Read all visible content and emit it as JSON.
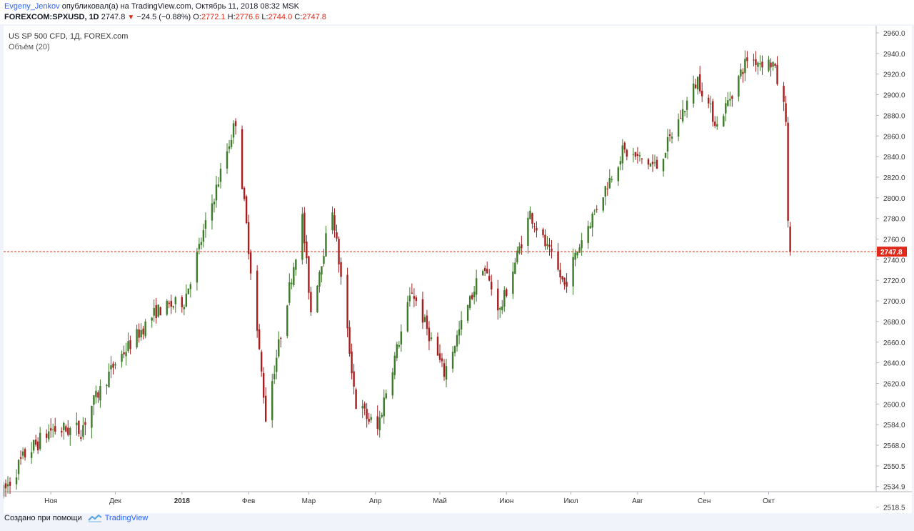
{
  "header": {
    "author": "Evgeny_Jenkov",
    "published_text": "опубликовал(а) на TradingView.com, Октябрь 11, 2018 08:32 MSK",
    "symbol": "FOREXCOM:SPXUSD, 1D",
    "last": "2747.8",
    "change": "−24.5 (−0.88%)",
    "o_label": "O:",
    "o": "2772.1",
    "h_label": "H:",
    "h": "2776.6",
    "l_label": "L:",
    "l": "2744.0",
    "c_label": "C:",
    "c": "2747.8"
  },
  "legend": {
    "title": "US SP 500 CFD, 1Д, FOREX.com",
    "volume": "Объём (20)"
  },
  "footer": {
    "created": "Создано при помощи",
    "brand": "TradingView"
  },
  "colors": {
    "up": "#3d7a2a",
    "down": "#a61e1e",
    "last_line": "#e0291a"
  },
  "chart_data": {
    "type": "candlestick",
    "price_label": "2747.8",
    "y_ticks": [
      2518.5,
      2534.9,
      2550.5,
      2568.0,
      2584.0,
      2600.0,
      2620.0,
      2640.0,
      2660.0,
      2680.0,
      2700.0,
      2720.0,
      2740.0,
      2760.0,
      2780.0,
      2800.0,
      2820.0,
      2840.0,
      2860.0,
      2880.0,
      2900.0,
      2920.0,
      2940.0,
      2960.0
    ],
    "y_tick_labels": [
      "2518.5",
      "2534.9",
      "2550.5",
      "2568.0",
      "2584.0",
      "2600.0",
      "2620.0",
      "2640.0",
      "2660.0",
      "2680.0",
      "2700.0",
      "2720.0",
      "2740.0",
      "2760.0",
      "2780.0",
      "2800.0",
      "2820.0",
      "2840.0",
      "2860.0",
      "2880.0",
      "2900.0",
      "2920.0",
      "2940.0",
      "2960.0"
    ],
    "x_labels": [
      "Ноя",
      "Дек",
      "2018",
      "Фев",
      "Мар",
      "Апр",
      "Май",
      "Июн",
      "Июл",
      "Авг",
      "Сен",
      "Окт"
    ],
    "x_label_dates": [
      "2017-11-01",
      "2017-12-01",
      "2018-01-01",
      "2018-02-01",
      "2018-03-01",
      "2018-04-01",
      "2018-05-01",
      "2018-06-01",
      "2018-07-01",
      "2018-08-01",
      "2018-09-01",
      "2018-10-01"
    ],
    "x_range": [
      "2017-10-10",
      "2018-11-20"
    ],
    "last_price": 2747.8,
    "waypoints": [
      {
        "date": "2017-10-10",
        "price": 2530
      },
      {
        "date": "2017-10-20",
        "price": 2560
      },
      {
        "date": "2017-11-01",
        "price": 2580
      },
      {
        "date": "2017-11-15",
        "price": 2580
      },
      {
        "date": "2017-12-01",
        "price": 2640
      },
      {
        "date": "2017-12-20",
        "price": 2690
      },
      {
        "date": "2018-01-02",
        "price": 2700
      },
      {
        "date": "2018-01-26",
        "price": 2875
      },
      {
        "date": "2018-02-06",
        "price": 2650
      },
      {
        "date": "2018-02-09",
        "price": 2590
      },
      {
        "date": "2018-02-26",
        "price": 2780
      },
      {
        "date": "2018-03-02",
        "price": 2690
      },
      {
        "date": "2018-03-12",
        "price": 2790
      },
      {
        "date": "2018-03-23",
        "price": 2600
      },
      {
        "date": "2018-04-02",
        "price": 2580
      },
      {
        "date": "2018-04-18",
        "price": 2710
      },
      {
        "date": "2018-05-03",
        "price": 2630
      },
      {
        "date": "2018-05-21",
        "price": 2735
      },
      {
        "date": "2018-05-29",
        "price": 2690
      },
      {
        "date": "2018-06-12",
        "price": 2785
      },
      {
        "date": "2018-06-28",
        "price": 2715
      },
      {
        "date": "2018-07-06",
        "price": 2760
      },
      {
        "date": "2018-07-25",
        "price": 2845
      },
      {
        "date": "2018-08-10",
        "price": 2830
      },
      {
        "date": "2018-08-29",
        "price": 2915
      },
      {
        "date": "2018-09-07",
        "price": 2870
      },
      {
        "date": "2018-09-21",
        "price": 2935
      },
      {
        "date": "2018-10-03",
        "price": 2930
      },
      {
        "date": "2018-10-09",
        "price": 2880
      },
      {
        "date": "2018-10-10",
        "price": 2772
      },
      {
        "date": "2018-10-11",
        "price": 2748
      }
    ]
  }
}
